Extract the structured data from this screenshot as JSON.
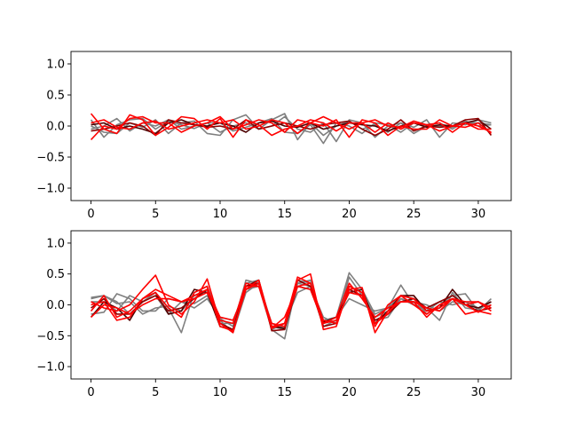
{
  "chart_data": [
    {
      "type": "line",
      "title": "",
      "xlabel": "",
      "ylabel": "",
      "xlim": [
        -1.55,
        32.55
      ],
      "ylim": [
        -1.2,
        1.2
      ],
      "xticks": [
        0,
        5,
        10,
        15,
        20,
        25,
        30
      ],
      "yticks": [
        -1.0,
        -0.5,
        0.0,
        0.5,
        1.0
      ],
      "xtick_labels": [
        "0",
        "5",
        "10",
        "15",
        "20",
        "25",
        "30"
      ],
      "ytick_labels": [
        "−1.0",
        "−0.5",
        "0.0",
        "0.5",
        "1.0"
      ],
      "grid": false,
      "x": [
        0,
        1,
        2,
        3,
        4,
        5,
        6,
        7,
        8,
        9,
        10,
        11,
        12,
        13,
        14,
        15,
        16,
        17,
        18,
        19,
        20,
        21,
        22,
        23,
        24,
        25,
        26,
        27,
        28,
        29,
        30,
        31
      ],
      "series": [
        {
          "color": "#7f7f7f",
          "values": [
            0.1,
            -0.18,
            0.02,
            0.1,
            0.12,
            -0.05,
            0.08,
            0.02,
            -0.04,
            0.05,
            -0.1,
            0.0,
            0.05,
            -0.05,
            0.1,
            0.2,
            -0.22,
            0.05,
            -0.15,
            0.0,
            0.08,
            -0.05,
            0.02,
            -0.1,
            0.05,
            -0.02,
            0.1,
            -0.18,
            0.05,
            0.02,
            0.1,
            0.05
          ]
        },
        {
          "color": "#7f7f7f",
          "values": [
            0.0,
            -0.1,
            -0.12,
            0.05,
            -0.02,
            0.1,
            -0.12,
            0.05,
            0.08,
            -0.12,
            -0.15,
            0.1,
            0.18,
            -0.05,
            0.0,
            0.15,
            -0.05,
            -0.1,
            0.05,
            -0.25,
            0.1,
            0.05,
            -0.18,
            0.0,
            0.05,
            -0.12,
            0.0,
            0.05,
            -0.05,
            0.08,
            0.0,
            0.02
          ]
        },
        {
          "color": "#7f7f7f",
          "values": [
            -0.05,
            0.0,
            0.12,
            -0.08,
            0.05,
            0.0,
            0.1,
            -0.05,
            0.0,
            0.05,
            0.05,
            -0.08,
            -0.02,
            0.05,
            0.12,
            -0.1,
            -0.12,
            0.02,
            -0.28,
            0.05,
            0.0,
            -0.12,
            0.05,
            0.02,
            -0.1,
            0.05,
            0.0,
            0.0,
            -0.02,
            0.05,
            0.05,
            0.02
          ]
        },
        {
          "color": "#4d0000",
          "values": [
            0.02,
            0.05,
            -0.05,
            0.0,
            -0.05,
            -0.12,
            0.05,
            0.1,
            0.02,
            0.0,
            0.05,
            0.0,
            -0.1,
            0.05,
            0.08,
            0.0,
            -0.02,
            0.05,
            -0.05,
            0.0,
            0.05,
            0.02,
            0.0,
            -0.08,
            0.0,
            0.05,
            -0.02,
            0.02,
            0.0,
            0.05,
            0.1,
            -0.05
          ]
        },
        {
          "color": "#8b0000",
          "values": [
            -0.08,
            -0.05,
            0.0,
            0.05,
            0.0,
            -0.15,
            0.1,
            0.05,
            0.02,
            -0.02,
            0.0,
            -0.05,
            0.1,
            -0.05,
            0.0,
            0.05,
            0.0,
            -0.05,
            0.02,
            0.05,
            0.08,
            -0.05,
            -0.15,
            -0.05,
            0.1,
            -0.08,
            0.0,
            -0.02,
            0.0,
            0.1,
            0.12,
            -0.15
          ]
        },
        {
          "color": "#ff0000",
          "values": [
            0.2,
            -0.05,
            -0.12,
            0.18,
            0.1,
            -0.15,
            -0.02,
            0.15,
            0.12,
            -0.05,
            0.12,
            -0.18,
            0.1,
            0.02,
            -0.15,
            -0.05,
            0.0,
            0.1,
            0.05,
            -0.08,
            0.05,
            0.05,
            -0.1,
            0.05,
            -0.05,
            0.05,
            0.02,
            0.05,
            -0.1,
            0.05,
            0.0,
            -0.1
          ]
        },
        {
          "color": "#ff0000",
          "values": [
            -0.22,
            0.0,
            -0.05,
            0.12,
            0.15,
            0.05,
            0.05,
            -0.1,
            0.0,
            0.05,
            0.15,
            -0.05,
            0.02,
            0.1,
            0.05,
            -0.1,
            0.1,
            0.05,
            0.15,
            0.05,
            -0.05,
            0.05,
            0.1,
            0.0,
            -0.02,
            0.08,
            0.02,
            -0.08,
            0.0,
            0.05,
            -0.05,
            -0.05
          ]
        },
        {
          "color": "#ff0000",
          "values": [
            0.05,
            0.1,
            -0.02,
            -0.05,
            0.05,
            0.08,
            -0.05,
            0.0,
            0.05,
            0.1,
            0.05,
            0.1,
            -0.05,
            0.0,
            0.1,
            0.05,
            -0.12,
            0.05,
            0.0,
            0.1,
            -0.18,
            0.1,
            0.05,
            -0.15,
            0.0,
            -0.05,
            -0.05,
            0.1,
            0.0,
            -0.02,
            0.05,
            -0.12
          ]
        }
      ]
    },
    {
      "type": "line",
      "title": "",
      "xlabel": "",
      "ylabel": "",
      "xlim": [
        -1.55,
        32.55
      ],
      "ylim": [
        -1.2,
        1.2
      ],
      "xticks": [
        0,
        5,
        10,
        15,
        20,
        25,
        30
      ],
      "yticks": [
        -1.0,
        -0.5,
        0.0,
        0.5,
        1.0
      ],
      "xtick_labels": [
        "0",
        "5",
        "10",
        "15",
        "20",
        "25",
        "30"
      ],
      "ytick_labels": [
        "−1.0",
        "−0.5",
        "0.0",
        "0.5",
        "1.0"
      ],
      "grid": false,
      "x": [
        0,
        1,
        2,
        3,
        4,
        5,
        6,
        7,
        8,
        9,
        10,
        11,
        12,
        13,
        14,
        15,
        16,
        17,
        18,
        19,
        20,
        21,
        22,
        23,
        24,
        25,
        26,
        27,
        28,
        29,
        30,
        31
      ],
      "series": [
        {
          "color": "#7f7f7f",
          "values": [
            0.1,
            0.15,
            0.05,
            -0.15,
            0.05,
            0.2,
            -0.05,
            -0.45,
            0.2,
            0.3,
            -0.22,
            -0.35,
            0.4,
            0.35,
            -0.4,
            -0.55,
            0.4,
            0.35,
            -0.3,
            -0.2,
            0.52,
            0.25,
            -0.15,
            -0.05,
            0.32,
            0.0,
            -0.1,
            0.05,
            0.0,
            0.05,
            -0.05,
            0.0
          ]
        },
        {
          "color": "#7f7f7f",
          "values": [
            0.12,
            0.15,
            0.02,
            0.05,
            -0.15,
            -0.05,
            -0.02,
            -0.1,
            0.15,
            0.2,
            -0.3,
            -0.3,
            0.35,
            0.4,
            -0.35,
            -0.4,
            0.35,
            0.4,
            -0.35,
            -0.25,
            0.3,
            0.2,
            -0.2,
            -0.1,
            0.1,
            0.0,
            -0.05,
            -0.25,
            0.2,
            -0.05,
            -0.08,
            0.05
          ]
        },
        {
          "color": "#7f7f7f",
          "values": [
            -0.15,
            -0.12,
            0.18,
            0.1,
            -0.1,
            -0.1,
            0.1,
            0.05,
            0.02,
            0.15,
            -0.25,
            -0.45,
            0.2,
            0.35,
            -0.3,
            -0.38,
            0.35,
            0.3,
            -0.25,
            -0.2,
            0.1,
            0.0,
            -0.1,
            -0.05,
            0.15,
            0.1,
            -0.15,
            0.0,
            0.15,
            0.18,
            -0.1,
            0.1
          ]
        },
        {
          "color": "#7f7f7f",
          "values": [
            0.05,
            0.05,
            -0.1,
            0.15,
            0.05,
            0.15,
            -0.15,
            0.05,
            -0.05,
            0.1,
            -0.2,
            -0.25,
            0.25,
            0.3,
            -0.4,
            -0.3,
            0.2,
            0.3,
            -0.2,
            -0.3,
            0.45,
            0.15,
            -0.25,
            -0.2,
            0.1,
            0.05,
            0.0,
            -0.1,
            0.05,
            0.0,
            0.05,
            -0.05
          ]
        },
        {
          "color": "#4d0000",
          "values": [
            -0.2,
            0.05,
            -0.05,
            -0.25,
            0.1,
            0.2,
            -0.15,
            -0.1,
            0.25,
            0.2,
            -0.35,
            -0.4,
            0.3,
            0.35,
            -0.35,
            -0.38,
            0.3,
            0.25,
            -0.28,
            -0.2,
            0.2,
            0.25,
            -0.3,
            -0.1,
            0.15,
            0.15,
            -0.1,
            -0.05,
            0.25,
            0.0,
            -0.05,
            0.05
          ]
        },
        {
          "color": "#8b0000",
          "values": [
            -0.05,
            0.1,
            -0.15,
            -0.15,
            0.05,
            0.15,
            -0.1,
            -0.05,
            0.1,
            0.25,
            -0.3,
            -0.4,
            0.3,
            0.4,
            -0.42,
            -0.4,
            0.4,
            0.3,
            -0.35,
            -0.3,
            0.25,
            0.15,
            -0.25,
            -0.15,
            0.05,
            0.1,
            -0.05,
            0.05,
            0.15,
            0.0,
            -0.1,
            -0.05
          ]
        },
        {
          "color": "#ff0000",
          "values": [
            0.05,
            -0.05,
            -0.1,
            0.0,
            0.25,
            0.48,
            0.0,
            -0.15,
            0.05,
            0.42,
            -0.3,
            -0.45,
            0.3,
            0.3,
            -0.38,
            -0.3,
            0.45,
            0.35,
            -0.25,
            -0.3,
            0.25,
            0.28,
            -0.45,
            -0.1,
            0.05,
            0.05,
            -0.2,
            0.0,
            0.1,
            0.0,
            0.05,
            -0.05
          ]
        },
        {
          "color": "#ff0000",
          "values": [
            0.0,
            0.05,
            -0.25,
            -0.2,
            0.1,
            0.2,
            -0.05,
            -0.2,
            0.2,
            0.3,
            -0.35,
            -0.42,
            0.25,
            0.4,
            -0.35,
            -0.3,
            0.4,
            0.5,
            -0.4,
            -0.35,
            0.3,
            0.2,
            -0.35,
            0.0,
            0.15,
            0.0,
            -0.15,
            0.0,
            0.1,
            -0.15,
            -0.1,
            -0.15
          ]
        },
        {
          "color": "#ff0000",
          "values": [
            -0.1,
            0.15,
            -0.2,
            -0.1,
            0.1,
            0.25,
            0.15,
            0.05,
            0.1,
            0.2,
            -0.25,
            -0.3,
            0.35,
            0.3,
            -0.3,
            -0.35,
            0.3,
            0.35,
            -0.3,
            -0.25,
            0.2,
            0.15,
            -0.3,
            -0.15,
            0.15,
            0.1,
            -0.1,
            -0.05,
            0.1,
            0.05,
            0.05,
            -0.1
          ]
        },
        {
          "color": "#ff0000",
          "values": [
            -0.2,
            0.0,
            -0.05,
            -0.15,
            0.0,
            0.1,
            0.1,
            0.05,
            0.15,
            0.25,
            -0.2,
            -0.25,
            0.25,
            0.35,
            -0.38,
            -0.2,
            0.3,
            0.25,
            -0.3,
            -0.2,
            0.35,
            0.1,
            -0.2,
            -0.05,
            0.05,
            0.05,
            -0.05,
            -0.1,
            0.1,
            0.0,
            -0.12,
            0.0
          ]
        }
      ]
    }
  ]
}
